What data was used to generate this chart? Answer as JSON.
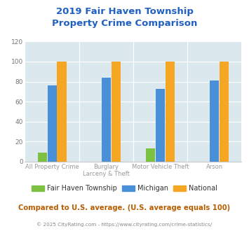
{
  "title": "2019 Fair Haven Township\nProperty Crime Comparison",
  "x_labels_line1": [
    "All Property Crime",
    "Burglary",
    "Motor Vehicle Theft",
    "Arson"
  ],
  "x_labels_line2": [
    "",
    "Larceny & Theft",
    "",
    ""
  ],
  "series": {
    "Fair Haven Township": [
      9,
      0,
      13,
      0
    ],
    "Michigan": [
      76,
      84,
      73,
      81
    ],
    "National": [
      100,
      100,
      100,
      100
    ]
  },
  "colors": {
    "Fair Haven Township": "#7dc142",
    "Michigan": "#4a90d9",
    "National": "#f5a623"
  },
  "ylim": [
    0,
    120
  ],
  "yticks": [
    0,
    20,
    40,
    60,
    80,
    100,
    120
  ],
  "title_color": "#2060c0",
  "title_fontsize": 9.5,
  "bg_color": "#dbe8ee",
  "footer_text": "Compared to U.S. average. (U.S. average equals 100)",
  "credit_text": "© 2025 CityRating.com - https://www.cityrating.com/crime-statistics/",
  "footer_color": "#b85c00",
  "credit_color": "#888888",
  "bar_width": 0.18
}
